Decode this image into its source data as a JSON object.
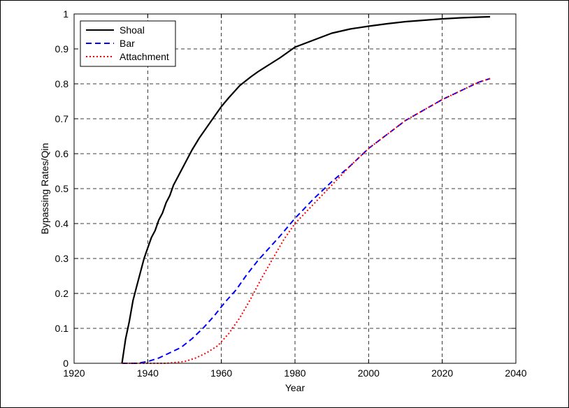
{
  "chart_data": {
    "type": "line",
    "title": "",
    "xlabel": "Year",
    "ylabel": "Bypassing Rates/Qin",
    "xlim": [
      1920,
      2040
    ],
    "ylim": [
      0,
      1
    ],
    "xticks": [
      1920,
      1940,
      1960,
      1980,
      2000,
      2020,
      2040
    ],
    "yticks": [
      0,
      0.1,
      0.2,
      0.3,
      0.4,
      0.5,
      0.6,
      0.7,
      0.8,
      0.9,
      1
    ],
    "grid": true,
    "legend_position": "top-left",
    "series": [
      {
        "name": "Shoal",
        "color": "#000000",
        "line_style": "solid",
        "x": [
          1933,
          1934,
          1935,
          1936,
          1937,
          1938,
          1939,
          1940,
          1941,
          1942,
          1943,
          1944,
          1945,
          1946,
          1947,
          1948,
          1950,
          1952,
          1954,
          1956,
          1958,
          1960,
          1962,
          1965,
          1968,
          1970,
          1973,
          1976,
          1980,
          1985,
          1990,
          1995,
          2000,
          2005,
          2010,
          2015,
          2020,
          2025,
          2030,
          2033
        ],
        "y": [
          0.0,
          0.07,
          0.12,
          0.18,
          0.22,
          0.26,
          0.3,
          0.33,
          0.36,
          0.38,
          0.41,
          0.43,
          0.46,
          0.48,
          0.51,
          0.53,
          0.57,
          0.61,
          0.645,
          0.675,
          0.705,
          0.735,
          0.76,
          0.795,
          0.82,
          0.835,
          0.855,
          0.875,
          0.905,
          0.925,
          0.945,
          0.957,
          0.965,
          0.972,
          0.978,
          0.982,
          0.986,
          0.989,
          0.991,
          0.992
        ]
      },
      {
        "name": "Bar",
        "color": "#0000ff",
        "line_style": "dashed",
        "x": [
          1933,
          1937,
          1940,
          1943,
          1946,
          1949,
          1952,
          1955,
          1958,
          1961,
          1964,
          1967,
          1970,
          1973,
          1976,
          1980,
          1985,
          1990,
          1995,
          2000,
          2005,
          2010,
          2015,
          2020,
          2025,
          2030,
          2033
        ],
        "y": [
          0.0,
          0.0,
          0.005,
          0.015,
          0.03,
          0.045,
          0.07,
          0.1,
          0.135,
          0.175,
          0.21,
          0.255,
          0.295,
          0.33,
          0.365,
          0.415,
          0.47,
          0.52,
          0.565,
          0.615,
          0.655,
          0.695,
          0.725,
          0.755,
          0.78,
          0.805,
          0.815
        ]
      },
      {
        "name": "Attachment",
        "color": "#ff0000",
        "line_style": "dotted",
        "x": [
          1933,
          1940,
          1945,
          1950,
          1953,
          1956,
          1959,
          1962,
          1965,
          1968,
          1971,
          1974,
          1977,
          1980,
          1985,
          1990,
          1995,
          2000,
          2005,
          2010,
          2015,
          2020,
          2025,
          2030,
          2033
        ],
        "y": [
          0.0,
          0.0,
          0.0,
          0.005,
          0.015,
          0.03,
          0.05,
          0.085,
          0.13,
          0.185,
          0.245,
          0.3,
          0.355,
          0.4,
          0.455,
          0.51,
          0.565,
          0.615,
          0.655,
          0.695,
          0.725,
          0.755,
          0.78,
          0.805,
          0.815
        ]
      }
    ]
  }
}
